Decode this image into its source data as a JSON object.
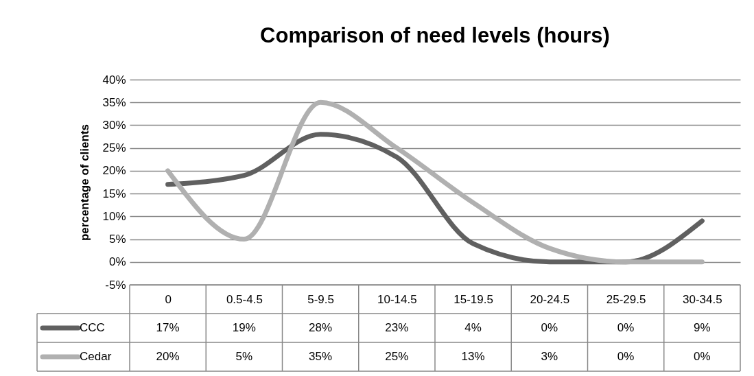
{
  "chart_data": {
    "type": "line",
    "title": "Comparison of need levels (hours)",
    "ylabel": "percentage of clients",
    "categories": [
      "0",
      "0.5-4.5",
      "5-9.5",
      "10-14.5",
      "15-19.5",
      "20-24.5",
      "25-29.5",
      "30-34.5"
    ],
    "series": [
      {
        "name": "CCC",
        "color": "#606060",
        "values": [
          17,
          19,
          28,
          23,
          4,
          0,
          0,
          9
        ],
        "value_labels": [
          "17%",
          "19%",
          "28%",
          "23%",
          "4%",
          "0%",
          "0%",
          "9%"
        ]
      },
      {
        "name": "Cedar",
        "color": "#b0b0b0",
        "values": [
          20,
          5,
          35,
          25,
          13,
          3,
          0,
          0
        ],
        "value_labels": [
          "20%",
          "5%",
          "35%",
          "25%",
          "13%",
          "3%",
          "0%",
          "0%"
        ]
      }
    ],
    "ylim": [
      -5,
      40
    ],
    "yticks": [
      {
        "value": -5,
        "label": "-5%"
      },
      {
        "value": 0,
        "label": "0%"
      },
      {
        "value": 5,
        "label": "5%"
      },
      {
        "value": 10,
        "label": "10%"
      },
      {
        "value": 15,
        "label": "15%"
      },
      {
        "value": 20,
        "label": "20%"
      },
      {
        "value": 25,
        "label": "25%"
      },
      {
        "value": 30,
        "label": "30%"
      },
      {
        "value": 35,
        "label": "35%"
      },
      {
        "value": 40,
        "label": "40%"
      }
    ],
    "grid": "y",
    "legend": "bottom",
    "line_style": "solid"
  }
}
